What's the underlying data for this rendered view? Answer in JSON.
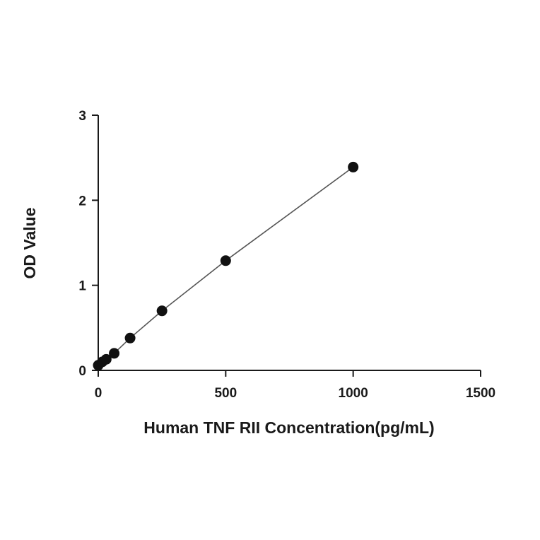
{
  "chart_data": {
    "type": "scatter",
    "title": "",
    "xlabel": "Human TNF RII Concentration(pg/mL)",
    "ylabel": "OD Value",
    "xlim": [
      0,
      1500
    ],
    "ylim": [
      0,
      3
    ],
    "xticks": [
      "0",
      "500",
      "1000",
      "1500"
    ],
    "yticks": [
      "0",
      "1",
      "2",
      "3"
    ],
    "grid": false,
    "legend": "none",
    "fit_line": true,
    "colors": {
      "points": "#111111",
      "fit_line": "#555555",
      "axis": "#1a1a1a"
    },
    "series": [
      {
        "x": [
          0,
          15.6,
          31.25,
          62.5,
          125,
          250,
          500,
          1000
        ],
        "y": [
          0.06,
          0.1,
          0.13,
          0.2,
          0.38,
          0.7,
          1.29,
          2.39
        ]
      }
    ]
  }
}
